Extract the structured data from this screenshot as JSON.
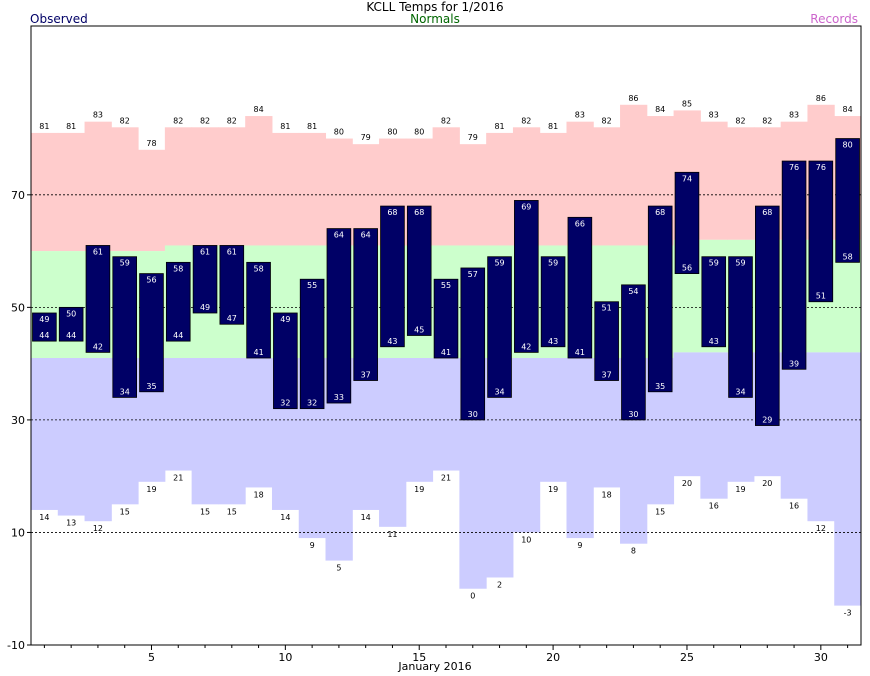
{
  "header": {
    "title": "KCLL Temps for 1/2016",
    "legend_observed": "Observed",
    "legend_normals": "Normals",
    "legend_records": "Records"
  },
  "colors": {
    "observed": "#000066",
    "normals": "#ccffcc",
    "record_high": "#ffcccc",
    "record_low": "#ccccff",
    "normals_label": "#006600",
    "records_label": "#cc66cc"
  },
  "chart_data": {
    "type": "bar",
    "title": "KCLL Temps for 1/2016",
    "xlabel": "January 2016",
    "ylabel": "",
    "ylim": [
      -10,
      100
    ],
    "y_ticks": [
      -10,
      10,
      30,
      50,
      70
    ],
    "x_ticks": [
      5,
      10,
      15,
      20,
      25,
      30
    ],
    "grid": "dashed horizontal at 10, 30, 50, 70",
    "days": [
      1,
      2,
      3,
      4,
      5,
      6,
      7,
      8,
      9,
      10,
      11,
      12,
      13,
      14,
      15,
      16,
      17,
      18,
      19,
      20,
      21,
      22,
      23,
      24,
      25,
      26,
      27,
      28,
      29,
      30,
      31
    ],
    "observed_high": [
      49,
      50,
      61,
      59,
      56,
      58,
      61,
      61,
      58,
      49,
      55,
      64,
      64,
      68,
      68,
      55,
      57,
      59,
      69,
      59,
      66,
      51,
      54,
      68,
      74,
      59,
      59,
      68,
      76,
      76,
      80
    ],
    "observed_low": [
      44,
      44,
      42,
      34,
      35,
      44,
      49,
      47,
      41,
      32,
      32,
      33,
      37,
      43,
      45,
      41,
      30,
      34,
      42,
      43,
      41,
      37,
      30,
      35,
      56,
      43,
      34,
      29,
      39,
      51,
      58
    ],
    "record_high": [
      81,
      81,
      83,
      82,
      78,
      82,
      82,
      82,
      84,
      81,
      81,
      80,
      79,
      80,
      80,
      82,
      79,
      81,
      82,
      81,
      83,
      82,
      86,
      84,
      85,
      83,
      82,
      82,
      83,
      86,
      84
    ],
    "record_low": [
      14,
      13,
      12,
      15,
      19,
      21,
      15,
      15,
      18,
      14,
      9,
      5,
      14,
      11,
      19,
      21,
      0,
      2,
      10,
      19,
      9,
      18,
      8,
      15,
      20,
      16,
      19,
      20,
      16,
      12,
      -3
    ],
    "normal_high": [
      60,
      60,
      60,
      60,
      60,
      61,
      61,
      61,
      61,
      61,
      61,
      61,
      61,
      61,
      61,
      61,
      61,
      61,
      61,
      61,
      61,
      61,
      61,
      61,
      62,
      62,
      62,
      62,
      62,
      62,
      62
    ],
    "normal_low": [
      41,
      41,
      41,
      41,
      41,
      41,
      41,
      41,
      41,
      41,
      41,
      41,
      41,
      41,
      41,
      41,
      41,
      41,
      41,
      41,
      41,
      41,
      41,
      41,
      42,
      42,
      42,
      42,
      42,
      42,
      42
    ]
  }
}
